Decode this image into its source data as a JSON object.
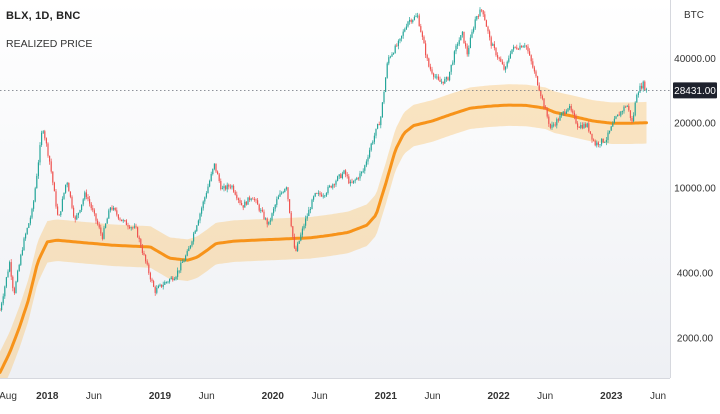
{
  "legend": {
    "symbol": "BLX, 1D, BNC",
    "indicator": "REALIZED PRICE"
  },
  "chart_data": {
    "type": "line",
    "y_axis_title": "BTC",
    "y_scale": "log",
    "ylim": [
      1300,
      75000
    ],
    "xlim": [
      "2017-08-01",
      "2023-07-10"
    ],
    "y_ticks": [
      {
        "value": 40000,
        "label": "40000.00"
      },
      {
        "value": 20000,
        "label": "20000.00"
      },
      {
        "value": 10000,
        "label": "10000.00"
      },
      {
        "value": 4000,
        "label": "4000.00"
      },
      {
        "value": 2000,
        "label": "2000.00"
      }
    ],
    "x_ticks": [
      {
        "date": "2017-08-01",
        "label": "Aug",
        "bold": false
      },
      {
        "date": "2018-01-01",
        "label": "2018",
        "bold": true
      },
      {
        "date": "2018-06-01",
        "label": "Jun",
        "bold": false
      },
      {
        "date": "2019-01-01",
        "label": "2019",
        "bold": true
      },
      {
        "date": "2019-06-01",
        "label": "Jun",
        "bold": false
      },
      {
        "date": "2020-01-01",
        "label": "2020",
        "bold": true
      },
      {
        "date": "2020-06-01",
        "label": "Jun",
        "bold": false
      },
      {
        "date": "2021-01-01",
        "label": "2021",
        "bold": true
      },
      {
        "date": "2021-06-01",
        "label": "Jun",
        "bold": false
      },
      {
        "date": "2022-01-01",
        "label": "2022",
        "bold": true
      },
      {
        "date": "2022-06-01",
        "label": "Jun",
        "bold": false
      },
      {
        "date": "2023-01-01",
        "label": "2023",
        "bold": true
      },
      {
        "date": "2023-06-01",
        "label": "Jun",
        "bold": false
      }
    ],
    "last_price": {
      "value": 28431,
      "label": "28431.00"
    },
    "colors": {
      "up": "#26a69a",
      "down": "#ef5350",
      "realized_line": "#f7931a",
      "band": "#f9c77a",
      "axis_bg": "#ffffff",
      "plot_bg_top": "#ffffff",
      "plot_bg_bottom": "#eef0f4",
      "price_tag_bg": "#1e222d",
      "price_tag_text": "#ffffff"
    },
    "series": [
      {
        "name": "price",
        "x": [
          "2017-08-01",
          "2017-09-01",
          "2017-09-15",
          "2017-10-15",
          "2017-11-15",
          "2017-12-17",
          "2018-01-10",
          "2018-02-06",
          "2018-03-05",
          "2018-04-01",
          "2018-05-05",
          "2018-06-28",
          "2018-07-25",
          "2018-09-01",
          "2018-10-15",
          "2018-11-20",
          "2018-12-15",
          "2019-01-15",
          "2019-02-20",
          "2019-04-01",
          "2019-05-15",
          "2019-06-26",
          "2019-07-20",
          "2019-08-20",
          "2019-09-25",
          "2019-10-26",
          "2019-12-18",
          "2020-01-15",
          "2020-02-14",
          "2020-03-13",
          "2020-04-15",
          "2020-05-15",
          "2020-06-15",
          "2020-07-27",
          "2020-08-20",
          "2020-09-10",
          "2020-10-20",
          "2020-11-15",
          "2020-12-15",
          "2021-01-08",
          "2021-02-15",
          "2021-03-13",
          "2021-04-14",
          "2021-05-19",
          "2021-06-22",
          "2021-07-20",
          "2021-08-20",
          "2021-09-06",
          "2021-09-21",
          "2021-10-20",
          "2021-11-10",
          "2021-12-05",
          "2022-01-22",
          "2022-02-10",
          "2022-03-29",
          "2022-05-10",
          "2022-06-18",
          "2022-07-15",
          "2022-08-15",
          "2022-09-15",
          "2022-10-15",
          "2022-11-09",
          "2022-12-15",
          "2023-01-15",
          "2023-02-20",
          "2023-03-10",
          "2023-03-25",
          "2023-04-14",
          "2023-04-25"
        ],
        "y": [
          2700,
          4500,
          3200,
          5500,
          8000,
          19500,
          13000,
          7000,
          11000,
          7000,
          9500,
          5900,
          8200,
          7000,
          6400,
          4300,
          3300,
          3600,
          3900,
          5000,
          8000,
          12800,
          9800,
          10300,
          8200,
          9200,
          6700,
          8800,
          10300,
          4900,
          7000,
          9200,
          9400,
          11000,
          11800,
          10300,
          12000,
          16000,
          21000,
          40000,
          48000,
          60000,
          63000,
          37000,
          31000,
          32000,
          47000,
          52000,
          42000,
          63000,
          68000,
          48000,
          35000,
          44000,
          47000,
          30000,
          19000,
          21000,
          24000,
          19500,
          19500,
          16000,
          16800,
          21000,
          24500,
          20000,
          28000,
          30500,
          28431
        ]
      },
      {
        "name": "realized",
        "x": [
          "2017-08-01",
          "2017-09-01",
          "2017-10-01",
          "2017-11-01",
          "2017-12-01",
          "2018-01-01",
          "2018-02-01",
          "2018-04-01",
          "2018-06-01",
          "2018-08-01",
          "2018-10-01",
          "2018-12-01",
          "2019-02-01",
          "2019-04-01",
          "2019-05-01",
          "2019-06-01",
          "2019-07-01",
          "2019-09-01",
          "2019-11-01",
          "2020-01-01",
          "2020-03-01",
          "2020-05-01",
          "2020-07-01",
          "2020-09-01",
          "2020-11-01",
          "2020-12-01",
          "2021-01-01",
          "2021-02-01",
          "2021-03-01",
          "2021-04-01",
          "2021-06-01",
          "2021-08-01",
          "2021-10-01",
          "2021-12-01",
          "2022-02-01",
          "2022-04-01",
          "2022-06-01",
          "2022-07-01",
          "2022-09-01",
          "2022-11-01",
          "2023-01-01",
          "2023-03-01",
          "2023-04-25"
        ],
        "y": [
          1380,
          1700,
          2200,
          3000,
          4500,
          5600,
          5700,
          5600,
          5500,
          5400,
          5350,
          5300,
          4700,
          4600,
          4750,
          5100,
          5500,
          5650,
          5700,
          5750,
          5800,
          5850,
          6000,
          6200,
          6700,
          7500,
          10500,
          15000,
          18000,
          19500,
          20500,
          22000,
          23500,
          24000,
          24300,
          24200,
          23500,
          22500,
          21500,
          20500,
          20000,
          20000,
          20100
        ]
      }
    ]
  }
}
